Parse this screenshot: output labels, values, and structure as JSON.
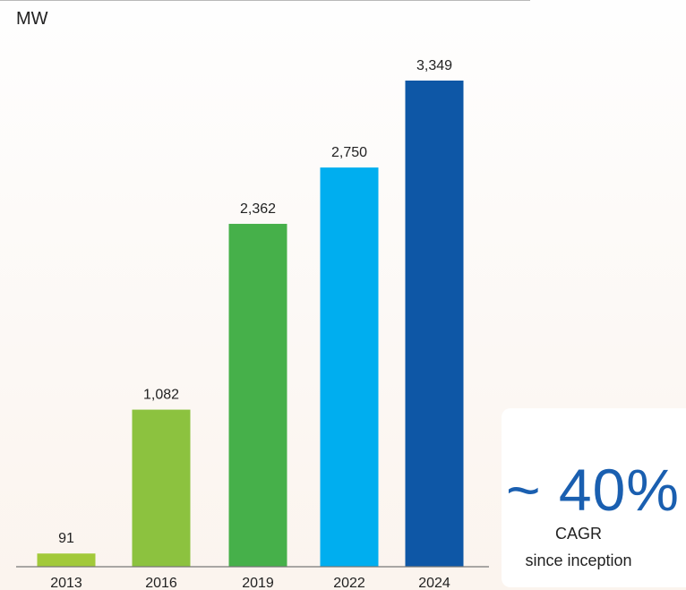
{
  "chart_data": {
    "type": "bar",
    "unit_label": "MW",
    "categories": [
      "2013",
      "2016",
      "2019",
      "2022",
      "2024"
    ],
    "values": [
      91,
      1082,
      2362,
      2750,
      3349
    ],
    "value_labels": [
      "91",
      "1,082",
      "2,362",
      "2,750",
      "3,349"
    ],
    "bar_colors": [
      "#a2c93a",
      "#8cc23f",
      "#46b04a",
      "#00aeef",
      "#0e57a6"
    ],
    "ylim": [
      0,
      3349
    ],
    "grid": false,
    "title": "",
    "xlabel": "",
    "ylabel": ""
  },
  "callout": {
    "value": "~ 40%",
    "label": "CAGR",
    "sublabel": "since inception",
    "accent_color": "#1a5fb0"
  }
}
